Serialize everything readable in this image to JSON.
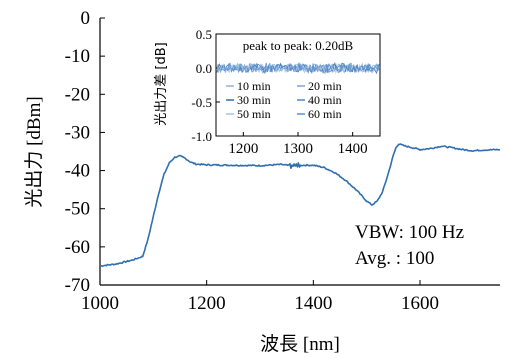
{
  "chart_data": [
    {
      "type": "line",
      "xlabel": "波長 [nm]",
      "ylabel": "光出力 [dBm]",
      "xlim": [
        1000,
        1750
      ],
      "ylim": [
        -70,
        0
      ],
      "x_ticks": [
        "1000",
        "1200",
        "1400",
        "1600"
      ],
      "y_ticks": [
        "0",
        "-10",
        "-20",
        "-30",
        "-40",
        "-50",
        "-60",
        "-70"
      ],
      "grid": false,
      "series_color": "#2f6fb0",
      "annotations": [
        "VBW: 100 Hz",
        "Avg. : 100"
      ],
      "x": [
        1000,
        1030,
        1060,
        1080,
        1090,
        1100,
        1110,
        1120,
        1130,
        1140,
        1150,
        1160,
        1170,
        1180,
        1200,
        1250,
        1300,
        1340,
        1360,
        1380,
        1400,
        1420,
        1440,
        1460,
        1480,
        1500,
        1510,
        1520,
        1530,
        1540,
        1550,
        1555,
        1560,
        1570,
        1580,
        1600,
        1620,
        1640,
        1660,
        1680,
        1700,
        1720,
        1750
      ],
      "y": [
        -65,
        -64.5,
        -63.5,
        -62.5,
        -58,
        -52,
        -46,
        -41,
        -38,
        -36.5,
        -36.2,
        -36.8,
        -37.8,
        -38.3,
        -38.5,
        -38.6,
        -38.7,
        -38.4,
        -38.8,
        -38.6,
        -38.6,
        -39.2,
        -40.5,
        -42.5,
        -45,
        -48,
        -49,
        -48,
        -45.5,
        -41,
        -36,
        -34,
        -33,
        -33.5,
        -33.8,
        -34.5,
        -34.2,
        -33.6,
        -34,
        -34.5,
        -34.8,
        -34.6,
        -34.5
      ]
    },
    {
      "type": "line",
      "ylabel": "光出力差 [dB]",
      "xlim": [
        1150,
        1450
      ],
      "ylim": [
        -1.0,
        0.5
      ],
      "x_ticks": [
        "1200",
        "1300",
        "1400"
      ],
      "y_ticks": [
        "0.5",
        "0.0",
        "-0.5",
        "-1.0"
      ],
      "annotation": "peak to peak: 0.20dB",
      "series": [
        {
          "name": "10 min",
          "color": "#8fb3dc"
        },
        {
          "name": "20 min",
          "color": "#7aa6d6"
        },
        {
          "name": "30 min",
          "color": "#2f6fb0"
        },
        {
          "name": "40 min",
          "color": "#4f86c6"
        },
        {
          "name": "50 min",
          "color": "#a9c4e4"
        },
        {
          "name": "60 min",
          "color": "#5b8fcc"
        }
      ]
    }
  ]
}
